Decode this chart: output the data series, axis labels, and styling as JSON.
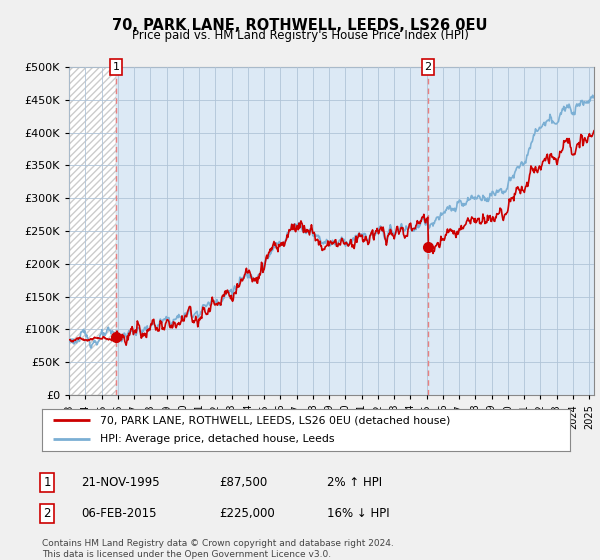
{
  "title": "70, PARK LANE, ROTHWELL, LEEDS, LS26 0EU",
  "subtitle": "Price paid vs. HM Land Registry's House Price Index (HPI)",
  "ylabel_ticks": [
    "£0",
    "£50K",
    "£100K",
    "£150K",
    "£200K",
    "£250K",
    "£300K",
    "£350K",
    "£400K",
    "£450K",
    "£500K"
  ],
  "ytick_values": [
    0,
    50000,
    100000,
    150000,
    200000,
    250000,
    300000,
    350000,
    400000,
    450000,
    500000
  ],
  "ylim": [
    0,
    500000
  ],
  "xlim_start": 1993.0,
  "xlim_end": 2025.3,
  "transaction1_date": 1995.9,
  "transaction1_price": 87500,
  "transaction2_date": 2015.09,
  "transaction2_price": 225000,
  "hpi_color": "#7bafd4",
  "price_color": "#cc0000",
  "dashed_line_color": "#e88080",
  "background_color": "#f0f0f0",
  "plot_bg_color": "#dce9f5",
  "hatch_bg_color": "#ffffff",
  "grid_color": "#b0c4d8",
  "legend_line1": "70, PARK LANE, ROTHWELL, LEEDS, LS26 0EU (detached house)",
  "legend_line2": "HPI: Average price, detached house, Leeds",
  "table_row1_num": "1",
  "table_row1_date": "21-NOV-1995",
  "table_row1_price": "£87,500",
  "table_row1_hpi": "2% ↑ HPI",
  "table_row2_num": "2",
  "table_row2_date": "06-FEB-2015",
  "table_row2_price": "£225,000",
  "table_row2_hpi": "16% ↓ HPI",
  "footnote1": "Contains HM Land Registry data © Crown copyright and database right 2024.",
  "footnote2": "This data is licensed under the Open Government Licence v3.0.",
  "xtick_years": [
    1993,
    1994,
    1995,
    1996,
    1997,
    1998,
    1999,
    2000,
    2001,
    2002,
    2003,
    2004,
    2005,
    2006,
    2007,
    2008,
    2009,
    2010,
    2011,
    2012,
    2013,
    2014,
    2015,
    2016,
    2017,
    2018,
    2019,
    2020,
    2021,
    2022,
    2023,
    2024,
    2025
  ]
}
